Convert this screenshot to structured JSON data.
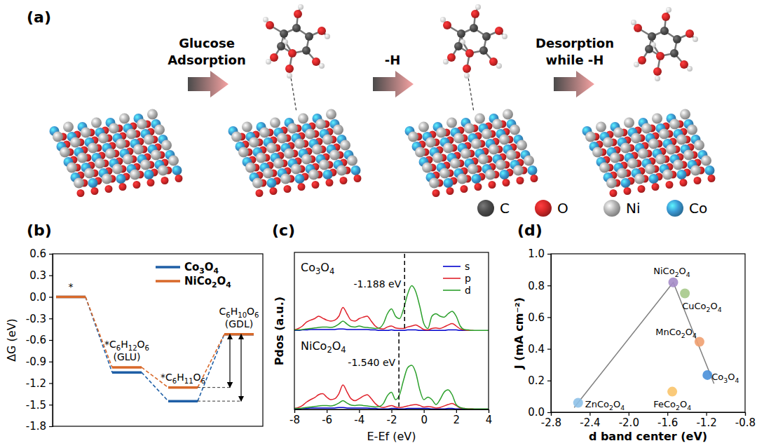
{
  "chart_data": [
    {
      "type": "diagram",
      "label": "(a)",
      "steps": [
        [
          "Glucose",
          "Adsorption"
        ],
        [
          "-H"
        ],
        [
          "Desorption",
          "while -H"
        ]
      ],
      "legend": [
        {
          "name": "C",
          "color": "#4d4d4d"
        },
        {
          "name": "O",
          "color": "#d62728"
        },
        {
          "name": "Ni",
          "color": "#b4b4b4"
        },
        {
          "name": "Co",
          "color": "#3b9bd6"
        }
      ]
    },
    {
      "type": "energy_diagram",
      "label": "(b)",
      "y_label": "ΔG (eV)",
      "categories": [
        [
          "*"
        ],
        [
          "*C6H12O6",
          "(GLU)"
        ],
        [
          "*C6H11O6"
        ],
        [
          "C6H10O6",
          "(GDL)"
        ]
      ],
      "ylim": [
        -1.8,
        0.6
      ],
      "yticks": [
        0.6,
        0.3,
        {
          "value": 0,
          "label": "0.0"
        },
        -0.3,
        -0.6,
        -0.9,
        -1.2,
        -1.5,
        -1.8
      ],
      "tick_labels": "y",
      "legend": "upper right",
      "series": [
        {
          "name": "Co3O4",
          "color": "#1f5fa6",
          "values": [
            0,
            -1.05,
            -1.45,
            -0.52
          ]
        },
        {
          "name": "NiCo2O4",
          "color": "#d8692a",
          "values": [
            0,
            -0.98,
            -1.26,
            -0.52
          ]
        }
      ]
    },
    {
      "type": "line",
      "label": "(c)",
      "x_label": "E-Ef (eV)",
      "y_label": "Pdos (a.u.)",
      "x": [
        -8,
        -7.75,
        -7.5,
        -7.25,
        -7,
        -6.75,
        -6.5,
        -6.25,
        -6,
        -5.75,
        -5.5,
        -5.25,
        -5,
        -4.75,
        -4.5,
        -4.25,
        -4,
        -3.75,
        -3.5,
        -3.25,
        -3,
        -2.75,
        -2.5,
        -2.25,
        -2,
        -1.75,
        -1.5,
        -1.25,
        -1,
        -0.75,
        -0.5,
        -0.25,
        0,
        0.25,
        0.5,
        0.75,
        1,
        1.25,
        1.5,
        1.75,
        2,
        2.25,
        2.5,
        2.75,
        3,
        3.25,
        3.5,
        3.75,
        4
      ],
      "xlim": [
        -8,
        4
      ],
      "xticks": [
        -8,
        -6,
        -4,
        -2,
        0,
        2,
        4
      ],
      "ylim": [
        0,
        1.6
      ],
      "tick_labels": "x",
      "legend": "upper right",
      "panels": [
        {
          "title": "Co3O4",
          "d_band_center": {
            "value": -1.188,
            "label": "-1.188 eV"
          },
          "series": [
            {
              "name": "s",
              "color": "#0000cd",
              "values": [
                0.01,
                0.01,
                0.02,
                0.02,
                0.03,
                0.03,
                0.03,
                0.03,
                0.03,
                0.03,
                0.03,
                0.04,
                0.04,
                0.03,
                0.03,
                0.03,
                0.03,
                0.03,
                0.03,
                0.02,
                0.02,
                0.01,
                0.01,
                0.01,
                0.02,
                0.01,
                0.01,
                0.01,
                0.02,
                0.02,
                0.02,
                0.01,
                0.01,
                0.01,
                0.01,
                0.01,
                0.01,
                0.01,
                0.02,
                0.02,
                0.02,
                0.01,
                0.01,
                0.01,
                0,
                0,
                0,
                0,
                0
              ]
            },
            {
              "name": "p",
              "color": "#e0202a",
              "values": [
                0.02,
                0.05,
                0.1,
                0.18,
                0.22,
                0.25,
                0.3,
                0.26,
                0.22,
                0.2,
                0.22,
                0.3,
                0.48,
                0.35,
                0.22,
                0.2,
                0.25,
                0.28,
                0.3,
                0.2,
                0.1,
                0.05,
                0.04,
                0.08,
                0.1,
                0.06,
                0.05,
                0.05,
                0.08,
                0.1,
                0.12,
                0.08,
                0.03,
                0.02,
                0.05,
                0.06,
                0.05,
                0.08,
                0.12,
                0.15,
                0.1,
                0.04,
                0.02,
                0.01,
                0.01,
                0,
                0,
                0,
                0
              ]
            },
            {
              "name": "d",
              "color": "#2ca02c",
              "values": [
                0.02,
                0.02,
                0.03,
                0.04,
                0.05,
                0.06,
                0.07,
                0.08,
                0.08,
                0.07,
                0.09,
                0.14,
                0.2,
                0.14,
                0.09,
                0.08,
                0.1,
                0.08,
                0.07,
                0.06,
                0.05,
                0.06,
                0.15,
                0.35,
                0.45,
                0.3,
                0.25,
                0.45,
                0.75,
                0.92,
                0.8,
                0.5,
                0.15,
                0.05,
                0.3,
                0.35,
                0.3,
                0.28,
                0.35,
                0.4,
                0.3,
                0.1,
                0.03,
                0.02,
                0.01,
                0.01,
                0.01,
                0.01,
                0.01
              ]
            }
          ]
        },
        {
          "title": "NiCo2O4",
          "d_band_center": {
            "value": -1.54,
            "label": "-1.540 eV"
          },
          "series": [
            {
              "name": "s",
              "color": "#0000cd",
              "values": [
                0.01,
                0.01,
                0.02,
                0.02,
                0.03,
                0.03,
                0.03,
                0.03,
                0.03,
                0.03,
                0.03,
                0.04,
                0.04,
                0.03,
                0.03,
                0.03,
                0.03,
                0.03,
                0.03,
                0.02,
                0.02,
                0.01,
                0.01,
                0.01,
                0.02,
                0.02,
                0.01,
                0.01,
                0.02,
                0.02,
                0.02,
                0.02,
                0.02,
                0.02,
                0.01,
                0.01,
                0.01,
                0.01,
                0.02,
                0.02,
                0.01,
                0.01,
                0.01,
                0,
                0,
                0,
                0,
                0,
                0
              ]
            },
            {
              "name": "p",
              "color": "#e0202a",
              "values": [
                0.02,
                0.04,
                0.08,
                0.15,
                0.2,
                0.24,
                0.3,
                0.32,
                0.25,
                0.2,
                0.22,
                0.32,
                0.5,
                0.36,
                0.22,
                0.18,
                0.22,
                0.27,
                0.3,
                0.22,
                0.12,
                0.06,
                0.04,
                0.06,
                0.08,
                0.05,
                0.04,
                0.05,
                0.07,
                0.09,
                0.1,
                0.08,
                0.05,
                0.06,
                0.05,
                0.03,
                0.04,
                0.07,
                0.1,
                0.12,
                0.08,
                0.03,
                0.02,
                0.01,
                0.01,
                0,
                0,
                0,
                0
              ]
            },
            {
              "name": "d",
              "color": "#2ca02c",
              "values": [
                0.02,
                0.02,
                0.03,
                0.04,
                0.05,
                0.06,
                0.07,
                0.08,
                0.08,
                0.07,
                0.09,
                0.13,
                0.18,
                0.13,
                0.09,
                0.08,
                0.09,
                0.08,
                0.07,
                0.06,
                0.05,
                0.06,
                0.12,
                0.28,
                0.35,
                0.2,
                0.3,
                0.6,
                0.85,
                0.9,
                0.75,
                0.4,
                0.2,
                0.25,
                0.2,
                0.1,
                0.2,
                0.35,
                0.4,
                0.3,
                0.1,
                0.04,
                0.02,
                0.01,
                0.01,
                0.01,
                0.01,
                0.01,
                0.01
              ]
            }
          ]
        }
      ]
    },
    {
      "type": "scatter",
      "label": "(d)",
      "x_label": "d band center (eV)",
      "y_label": "J (mA cm⁻²)",
      "xlim": [
        -2.8,
        -0.8
      ],
      "xticks": [
        -2.8,
        -2.4,
        {
          "value": -2,
          "label": "-2.0"
        },
        -1.6,
        -1.2,
        -0.8
      ],
      "ylim": [
        0,
        1
      ],
      "yticks": [
        {
          "value": 0,
          "label": "0.0"
        },
        0.2,
        0.4,
        0.6,
        0.8,
        {
          "value": 1,
          "label": "1.0"
        }
      ],
      "series": [
        {
          "type": "scatter",
          "categories": [
            "NiCo2O4",
            "CuCo2O4",
            "MnCo2O4",
            "Co3O4",
            "FeCo2O4",
            "ZnCo2O4"
          ],
          "x": [
            -1.54,
            -1.42,
            -1.27,
            -1.188,
            -1.55,
            -2.52
          ],
          "values": [
            0.82,
            0.75,
            0.445,
            0.235,
            0.13,
            0.06
          ],
          "colors": [
            "#a58cc8",
            "#a6c98a",
            "#f0a070",
            "#4a90d9",
            "#f9c46b",
            "#8ec1e8"
          ]
        },
        {
          "type": "line",
          "color": "#808080",
          "x": [
            -2.56,
            -1.54,
            -1.12
          ],
          "values": [
            0.03,
            0.82,
            0.18
          ]
        }
      ]
    }
  ]
}
